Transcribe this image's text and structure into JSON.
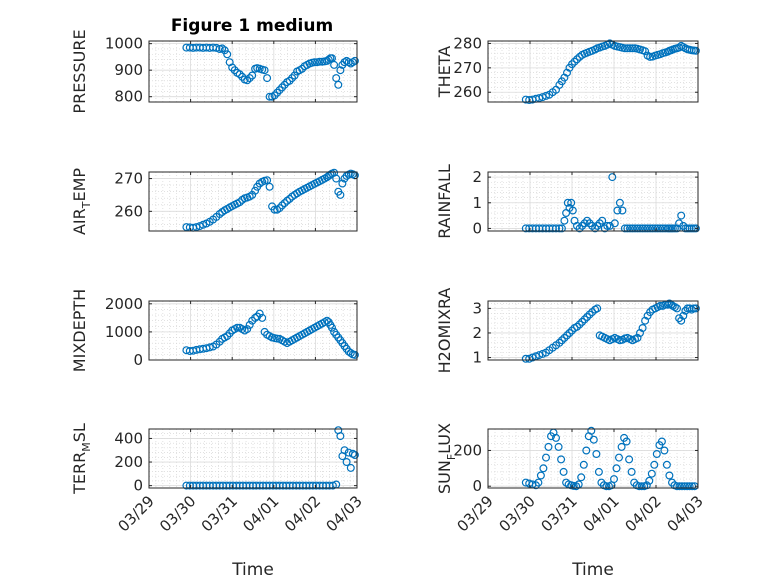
{
  "figure": {
    "title": "Figure 1 medium",
    "marker_color": "#0072BD"
  },
  "x_tick_labels": [
    "03/29",
    "03/30",
    "03/31",
    "04/01",
    "04/02",
    "04/03"
  ],
  "chart_data": [
    {
      "type": "scatter",
      "ylabel": "PRESSURE",
      "ylabel_main": "PRESSURE",
      "ylabel_sub": "",
      "ylabel_rest": "",
      "xlabel": "",
      "xlim": [
        0,
        5
      ],
      "ylim": [
        780,
        1010
      ],
      "yticks": [
        800,
        900,
        1000
      ],
      "ytick_labels": [
        "800",
        "900",
        "1000"
      ],
      "x": [
        0.9,
        0.98,
        1.06,
        1.14,
        1.22,
        1.3,
        1.38,
        1.46,
        1.54,
        1.62,
        1.7,
        1.76,
        1.82,
        1.88,
        1.94,
        2.0,
        2.06,
        2.12,
        2.18,
        2.24,
        2.3,
        2.36,
        2.42,
        2.48,
        2.55,
        2.6,
        2.66,
        2.72,
        2.78,
        2.84,
        2.9,
        2.96,
        3.02,
        3.08,
        3.14,
        3.2,
        3.26,
        3.32,
        3.38,
        3.44,
        3.5,
        3.56,
        3.62,
        3.68,
        3.74,
        3.8,
        3.86,
        3.92,
        3.98,
        4.04,
        4.1,
        4.16,
        4.22,
        4.28,
        4.32,
        4.36,
        4.4,
        4.45,
        4.5,
        4.55,
        4.6,
        4.65,
        4.7,
        4.75,
        4.8,
        4.85,
        4.9,
        4.95
      ],
      "y": [
        985,
        985,
        984,
        985,
        985,
        984,
        985,
        984,
        985,
        984,
        980,
        982,
        975,
        960,
        930,
        910,
        900,
        890,
        885,
        875,
        865,
        862,
        870,
        880,
        905,
        908,
        905,
        902,
        900,
        870,
        800,
        800,
        805,
        815,
        825,
        835,
        845,
        855,
        860,
        870,
        880,
        895,
        900,
        905,
        915,
        920,
        925,
        928,
        930,
        930,
        932,
        932,
        933,
        935,
        940,
        945,
        945,
        920,
        870,
        845,
        900,
        920,
        930,
        935,
        930,
        925,
        930,
        935
      ]
    },
    {
      "type": "scatter",
      "ylabel": "THETA",
      "ylabel_main": "THETA",
      "ylabel_sub": "",
      "ylabel_rest": "",
      "xlabel": "",
      "xlim": [
        0,
        5
      ],
      "ylim": [
        256,
        281
      ],
      "yticks": [
        260,
        270,
        280
      ],
      "ytick_labels": [
        "260",
        "270",
        "280"
      ],
      "x": [
        0.9,
        0.98,
        1.06,
        1.14,
        1.22,
        1.3,
        1.38,
        1.46,
        1.54,
        1.62,
        1.7,
        1.76,
        1.82,
        1.88,
        1.94,
        2.0,
        2.06,
        2.12,
        2.18,
        2.24,
        2.3,
        2.36,
        2.42,
        2.48,
        2.55,
        2.6,
        2.66,
        2.72,
        2.78,
        2.84,
        2.9,
        2.96,
        3.02,
        3.08,
        3.14,
        3.2,
        3.26,
        3.32,
        3.38,
        3.44,
        3.5,
        3.56,
        3.62,
        3.68,
        3.74,
        3.8,
        3.86,
        3.92,
        3.98,
        4.04,
        4.1,
        4.16,
        4.22,
        4.28,
        4.32,
        4.36,
        4.4,
        4.45,
        4.5,
        4.55,
        4.6,
        4.65,
        4.7,
        4.75,
        4.8,
        4.85,
        4.9,
        4.95
      ],
      "y": [
        257,
        256.8,
        257,
        257.3,
        257.6,
        258,
        258.5,
        259,
        260,
        261,
        263,
        264.5,
        266,
        268,
        270,
        271.5,
        272.5,
        273.5,
        274.5,
        275.3,
        275.8,
        276.2,
        276.6,
        277,
        277.5,
        278,
        278.3,
        278.7,
        279,
        279.5,
        280,
        279.5,
        279,
        278.7,
        278.5,
        278.2,
        278,
        278,
        278,
        278,
        278,
        277.8,
        277.5,
        277.2,
        276.8,
        275,
        274.5,
        274.6,
        275,
        275.3,
        275.6,
        276,
        276.3,
        276.6,
        277,
        277.2,
        277.5,
        277.8,
        278,
        278.3,
        279,
        278.5,
        278,
        277.6,
        277.4,
        277.2,
        277.1,
        277
      ]
    },
    {
      "type": "scatter",
      "ylabel": "AIR_TEMP",
      "ylabel_main": "AIR",
      "ylabel_sub": "T",
      "ylabel_rest": "EMP",
      "xlabel": "",
      "xlim": [
        0,
        5
      ],
      "ylim": [
        254,
        272
      ],
      "yticks": [
        260,
        270
      ],
      "ytick_labels": [
        "260",
        "270"
      ],
      "x": [
        0.9,
        0.98,
        1.06,
        1.14,
        1.22,
        1.3,
        1.38,
        1.46,
        1.54,
        1.62,
        1.7,
        1.76,
        1.82,
        1.88,
        1.94,
        2.0,
        2.06,
        2.12,
        2.18,
        2.24,
        2.3,
        2.36,
        2.42,
        2.48,
        2.55,
        2.6,
        2.66,
        2.72,
        2.78,
        2.84,
        2.9,
        2.96,
        3.02,
        3.08,
        3.14,
        3.2,
        3.26,
        3.32,
        3.38,
        3.44,
        3.5,
        3.56,
        3.62,
        3.68,
        3.74,
        3.8,
        3.86,
        3.92,
        3.98,
        4.04,
        4.1,
        4.16,
        4.22,
        4.28,
        4.32,
        4.36,
        4.4,
        4.45,
        4.5,
        4.55,
        4.6,
        4.65,
        4.7,
        4.75,
        4.8,
        4.85,
        4.9,
        4.95
      ],
      "y": [
        255.2,
        255.1,
        255,
        255.2,
        255.5,
        255.9,
        256.3,
        256.8,
        257.5,
        258.3,
        259.2,
        259.8,
        260.3,
        260.7,
        261.2,
        261.6,
        262,
        262.4,
        262.8,
        263.5,
        264,
        264.2,
        264.5,
        265,
        266.3,
        267.5,
        268.5,
        269,
        269.3,
        269.5,
        267.5,
        261.5,
        260.5,
        260.5,
        261,
        261.8,
        262.5,
        263.2,
        263.8,
        264.5,
        265,
        265.5,
        266,
        266.4,
        266.8,
        267.2,
        267.6,
        268,
        268.4,
        268.8,
        269.2,
        269.6,
        270,
        270.4,
        270.8,
        271.2,
        271.5,
        271.8,
        270,
        266,
        265,
        268.5,
        270,
        270.8,
        271.2,
        271.5,
        271.3,
        271
      ]
    },
    {
      "type": "scatter",
      "ylabel": "RAINFALL",
      "ylabel_main": "RAINFALL",
      "ylabel_sub": "",
      "ylabel_rest": "",
      "xlabel": "",
      "xlim": [
        0,
        5
      ],
      "ylim": [
        -0.1,
        2.2
      ],
      "yticks": [
        0,
        1,
        2
      ],
      "ytick_labels": [
        "0",
        "1",
        "2"
      ],
      "x": [
        0.9,
        0.98,
        1.06,
        1.14,
        1.22,
        1.3,
        1.38,
        1.46,
        1.54,
        1.62,
        1.7,
        1.76,
        1.82,
        1.86,
        1.9,
        1.94,
        1.98,
        2.02,
        2.06,
        2.12,
        2.18,
        2.24,
        2.3,
        2.36,
        2.42,
        2.48,
        2.55,
        2.6,
        2.66,
        2.72,
        2.78,
        2.84,
        2.9,
        2.96,
        3.02,
        3.08,
        3.14,
        3.2,
        3.26,
        3.32,
        3.38,
        3.44,
        3.5,
        3.56,
        3.62,
        3.68,
        3.74,
        3.8,
        3.86,
        3.92,
        3.98,
        4.04,
        4.1,
        4.16,
        4.22,
        4.28,
        4.32,
        4.36,
        4.4,
        4.45,
        4.5,
        4.55,
        4.6,
        4.65,
        4.7,
        4.75,
        4.8,
        4.85,
        4.9,
        4.95
      ],
      "y": [
        0,
        0,
        0,
        0,
        0,
        0,
        0,
        0,
        0,
        0,
        0,
        0,
        0.3,
        0.6,
        1,
        0.8,
        1,
        0.7,
        0.3,
        0.1,
        0,
        0.1,
        0.2,
        0.3,
        0.2,
        0.1,
        0,
        0.1,
        0.2,
        0.3,
        0,
        0.1,
        0.1,
        2,
        0.2,
        0.7,
        1,
        0.7,
        0,
        0,
        0,
        0,
        0,
        0,
        0,
        0,
        0,
        0,
        0,
        0,
        0,
        0,
        0,
        0,
        0,
        0,
        0,
        0,
        0,
        0,
        0,
        0.2,
        0.5,
        0.1,
        0,
        0,
        0,
        0,
        0,
        0
      ]
    },
    {
      "type": "scatter",
      "ylabel": "MIXDEPTH",
      "ylabel_main": "MIXDEPTH",
      "ylabel_sub": "",
      "ylabel_rest": "",
      "xlabel": "",
      "xlim": [
        0,
        5
      ],
      "ylim": [
        0,
        2100
      ],
      "yticks": [
        0,
        1000,
        2000
      ],
      "ytick_labels": [
        "0",
        "1000",
        "2000"
      ],
      "x": [
        0.9,
        0.98,
        1.06,
        1.14,
        1.22,
        1.3,
        1.38,
        1.46,
        1.54,
        1.62,
        1.7,
        1.76,
        1.82,
        1.88,
        1.94,
        2.0,
        2.06,
        2.12,
        2.18,
        2.24,
        2.3,
        2.36,
        2.42,
        2.48,
        2.55,
        2.6,
        2.66,
        2.72,
        2.78,
        2.84,
        2.9,
        2.96,
        3.02,
        3.08,
        3.14,
        3.2,
        3.26,
        3.32,
        3.38,
        3.44,
        3.5,
        3.56,
        3.62,
        3.68,
        3.74,
        3.8,
        3.86,
        3.92,
        3.98,
        4.04,
        4.1,
        4.16,
        4.22,
        4.28,
        4.32,
        4.36,
        4.4,
        4.45,
        4.5,
        4.55,
        4.6,
        4.65,
        4.7,
        4.75,
        4.8,
        4.85,
        4.9,
        4.95
      ],
      "y": [
        350,
        320,
        330,
        360,
        380,
        400,
        420,
        450,
        480,
        550,
        650,
        750,
        800,
        850,
        950,
        1050,
        1100,
        1150,
        1150,
        1100,
        1050,
        1100,
        1250,
        1400,
        1500,
        1550,
        1650,
        1500,
        1000,
        900,
        850,
        800,
        780,
        760,
        750,
        700,
        650,
        600,
        650,
        700,
        750,
        800,
        850,
        900,
        950,
        1000,
        1050,
        1100,
        1150,
        1200,
        1250,
        1300,
        1350,
        1400,
        1350,
        1250,
        1150,
        1000,
        900,
        800,
        700,
        600,
        500,
        400,
        300,
        250,
        200,
        180
      ]
    },
    {
      "type": "scatter",
      "ylabel": "H2OMIXRA",
      "ylabel_main": "H2OMIXRA",
      "ylabel_sub": "",
      "ylabel_rest": "",
      "xlabel": "",
      "xlim": [
        0,
        5
      ],
      "ylim": [
        0.9,
        3.3
      ],
      "yticks": [
        1,
        2,
        3
      ],
      "ytick_labels": [
        "1",
        "2",
        "3"
      ],
      "x": [
        0.9,
        0.98,
        1.06,
        1.14,
        1.22,
        1.3,
        1.38,
        1.46,
        1.54,
        1.62,
        1.7,
        1.76,
        1.82,
        1.88,
        1.94,
        2.0,
        2.06,
        2.12,
        2.18,
        2.24,
        2.3,
        2.36,
        2.42,
        2.48,
        2.55,
        2.6,
        2.66,
        2.72,
        2.78,
        2.84,
        2.9,
        2.96,
        3.02,
        3.08,
        3.14,
        3.2,
        3.26,
        3.32,
        3.38,
        3.44,
        3.5,
        3.56,
        3.62,
        3.68,
        3.74,
        3.8,
        3.86,
        3.92,
        3.98,
        4.04,
        4.1,
        4.16,
        4.22,
        4.28,
        4.32,
        4.36,
        4.4,
        4.45,
        4.5,
        4.55,
        4.6,
        4.65,
        4.7,
        4.75,
        4.8,
        4.85,
        4.9,
        4.95
      ],
      "y": [
        0.95,
        0.95,
        1.0,
        1.05,
        1.1,
        1.15,
        1.2,
        1.3,
        1.4,
        1.5,
        1.6,
        1.7,
        1.8,
        1.9,
        2.0,
        2.1,
        2.2,
        2.25,
        2.35,
        2.45,
        2.55,
        2.65,
        2.75,
        2.85,
        2.95,
        3.0,
        1.9,
        1.85,
        1.8,
        1.75,
        1.7,
        1.75,
        1.8,
        1.75,
        1.7,
        1.72,
        1.78,
        1.8,
        1.75,
        1.7,
        1.75,
        1.8,
        2.0,
        2.2,
        2.5,
        2.7,
        2.85,
        2.95,
        3.0,
        3.05,
        3.1,
        3.1,
        3.15,
        3.15,
        3.2,
        3.15,
        3.1,
        3.05,
        3.0,
        2.6,
        2.5,
        2.7,
        2.9,
        3.0,
        3.0,
        2.95,
        3.0,
        3.0
      ]
    },
    {
      "type": "scatter",
      "ylabel": "TERR_MSL",
      "ylabel_main": "TERR",
      "ylabel_sub": "M",
      "ylabel_rest": "SL",
      "xlabel": "Time",
      "xlim": [
        0,
        5
      ],
      "ylim": [
        -20,
        480
      ],
      "yticks": [
        0,
        200,
        400
      ],
      "ytick_labels": [
        "0",
        "200",
        "400"
      ],
      "x": [
        0.9,
        0.98,
        1.06,
        1.14,
        1.22,
        1.3,
        1.38,
        1.46,
        1.54,
        1.62,
        1.7,
        1.78,
        1.86,
        1.94,
        2.02,
        2.1,
        2.18,
        2.26,
        2.34,
        2.42,
        2.5,
        2.58,
        2.66,
        2.74,
        2.82,
        2.9,
        2.98,
        3.06,
        3.14,
        3.22,
        3.3,
        3.38,
        3.46,
        3.54,
        3.62,
        3.7,
        3.78,
        3.86,
        3.94,
        4.02,
        4.1,
        4.18,
        4.26,
        4.34,
        4.42,
        4.5,
        4.55,
        4.6,
        4.65,
        4.7,
        4.75,
        4.8,
        4.85,
        4.9,
        4.95
      ],
      "y": [
        0,
        0,
        0,
        0,
        0,
        0,
        0,
        0,
        0,
        0,
        0,
        0,
        0,
        0,
        0,
        0,
        0,
        0,
        0,
        0,
        0,
        0,
        0,
        0,
        0,
        0,
        0,
        0,
        0,
        0,
        0,
        0,
        0,
        0,
        0,
        0,
        0,
        0,
        0,
        0,
        0,
        0,
        0,
        0,
        0,
        10,
        470,
        420,
        250,
        300,
        200,
        280,
        150,
        270,
        260
      ]
    },
    {
      "type": "scatter",
      "ylabel": "SUN_FLUX",
      "ylabel_main": "SUN",
      "ylabel_sub": "F",
      "ylabel_rest": "LUX",
      "xlabel": "Time",
      "xlim": [
        0,
        5
      ],
      "ylim": [
        -10,
        320
      ],
      "yticks": [
        0,
        200
      ],
      "ytick_labels": [
        "0",
        "200"
      ],
      "x": [
        0.9,
        0.98,
        1.06,
        1.14,
        1.2,
        1.26,
        1.32,
        1.38,
        1.44,
        1.5,
        1.56,
        1.62,
        1.68,
        1.74,
        1.8,
        1.86,
        1.92,
        1.98,
        2.04,
        2.1,
        2.16,
        2.22,
        2.28,
        2.34,
        2.4,
        2.46,
        2.52,
        2.58,
        2.64,
        2.7,
        2.76,
        2.82,
        2.88,
        2.94,
        3.0,
        3.06,
        3.12,
        3.18,
        3.24,
        3.3,
        3.36,
        3.42,
        3.48,
        3.54,
        3.6,
        3.66,
        3.72,
        3.78,
        3.84,
        3.9,
        3.96,
        4.02,
        4.08,
        4.14,
        4.2,
        4.26,
        4.32,
        4.38,
        4.44,
        4.5,
        4.56,
        4.62,
        4.68,
        4.74,
        4.8,
        4.86,
        4.92
      ],
      "y": [
        20,
        15,
        10,
        5,
        20,
        60,
        100,
        160,
        220,
        280,
        300,
        270,
        220,
        150,
        80,
        20,
        10,
        5,
        2,
        0,
        10,
        50,
        120,
        200,
        280,
        310,
        260,
        180,
        80,
        20,
        5,
        0,
        0,
        5,
        40,
        100,
        160,
        220,
        270,
        250,
        150,
        80,
        20,
        5,
        0,
        0,
        0,
        5,
        30,
        70,
        120,
        180,
        230,
        250,
        200,
        120,
        60,
        20,
        5,
        0,
        0,
        0,
        0,
        0,
        0,
        0,
        0
      ]
    }
  ]
}
